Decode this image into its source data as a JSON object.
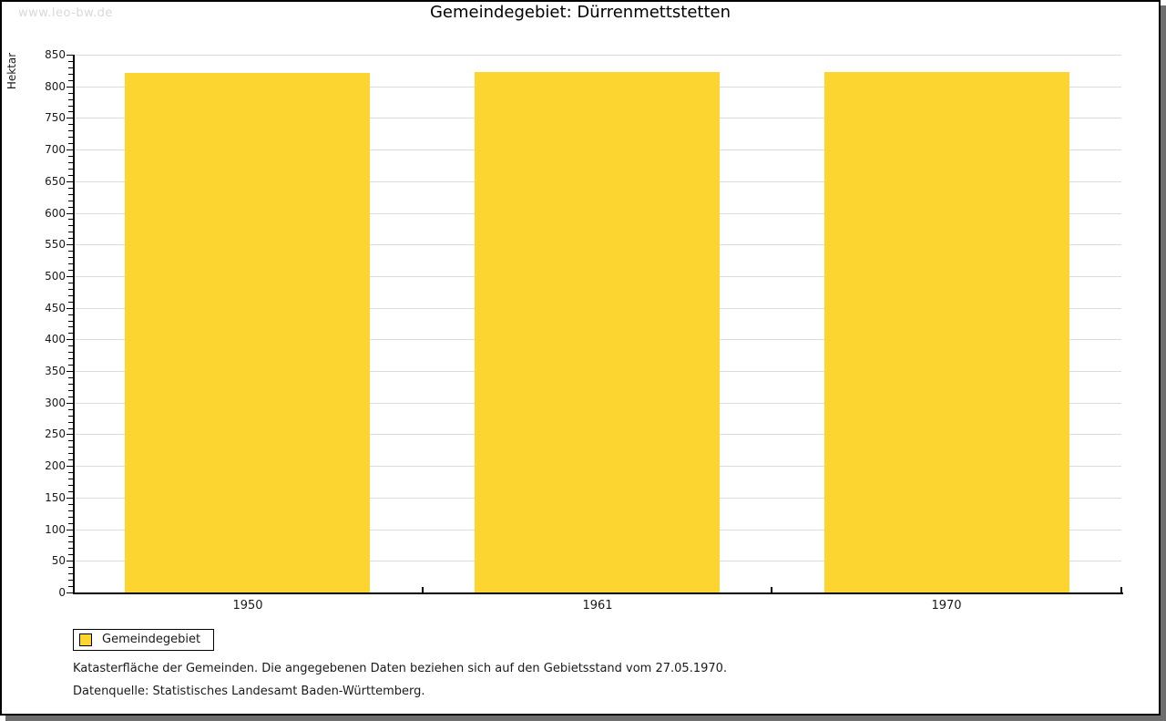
{
  "watermark": "www.leo-bw.de",
  "title": "Gemeindegebiet: Dürrenmettstetten",
  "chart_data": {
    "type": "bar",
    "title": "Gemeindegebiet: Dürrenmettstetten",
    "categories": [
      "1950",
      "1961",
      "1970"
    ],
    "series": [
      {
        "name": "Gemeindegebiet",
        "values": [
          821,
          823,
          823
        ]
      }
    ],
    "xlabel": "",
    "ylabel": "Hektar",
    "ylim": [
      0,
      850
    ],
    "y_major_step": 50,
    "y_minor_step": 10,
    "grid": true,
    "legend_position": "bottom-left",
    "bar_color": "#FCD530",
    "grid_color": "#dcdcdc",
    "axis_color": "#000000"
  },
  "legend": {
    "items": [
      {
        "label": "Gemeindegebiet",
        "color": "#FCD530"
      }
    ]
  },
  "footer": {
    "line1": "Katasterfläche der Gemeinden. Die angegebenen Daten beziehen sich auf den Gebietsstand vom 27.05.1970.",
    "line2": "Datenquelle: Statistisches Landesamt Baden-Württemberg."
  },
  "colors": {
    "bar": "#FCD530",
    "gridline": "#dcdcdc",
    "axis": "#000000",
    "panel_shadow": "#6e6e6e",
    "watermark": "#d9d9d9"
  }
}
